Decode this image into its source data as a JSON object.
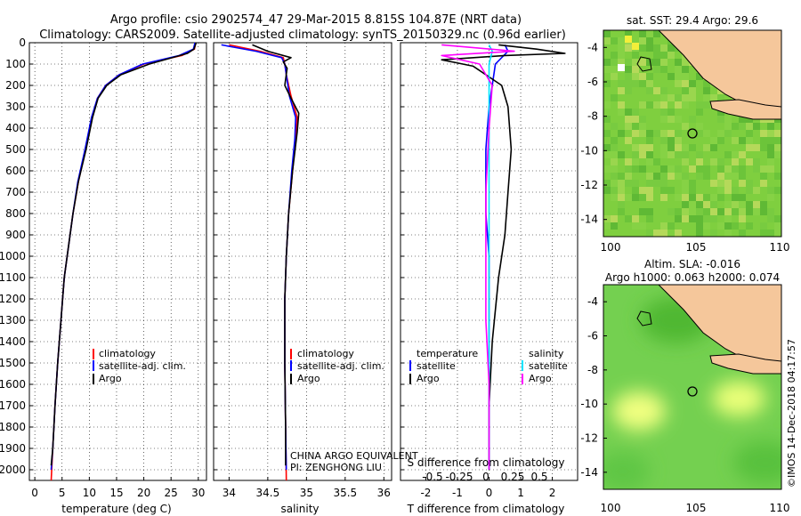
{
  "header": {
    "line1": "Argo profile: csio 2902574_47 29-Mar-2015 8.815S 104.87E (NRT data)",
    "line2": "Climatology: CARS2009. Satellite-adjusted climatology: synTS_20150329.nc (0.96d earlier)"
  },
  "colors": {
    "climatology": "#ff0000",
    "satellite": "#0000ff",
    "argo": "#000000",
    "sat_sal": "#00e5ff",
    "argo_sal": "#ff00ff"
  },
  "chart_data": [
    {
      "id": "temperature",
      "type": "line",
      "xlabel": "temperature (deg C)",
      "ylabel": "",
      "xlim": [
        -1,
        31.5
      ],
      "ylim": [
        2050,
        0
      ],
      "xticks": [
        0,
        5,
        10,
        15,
        20,
        25,
        30
      ],
      "yticks": [
        0,
        100,
        200,
        300,
        400,
        500,
        600,
        700,
        800,
        900,
        1000,
        1100,
        1200,
        1300,
        1400,
        1500,
        1600,
        1700,
        1800,
        1900,
        2000
      ],
      "legend": [
        "climatology",
        "satellite-adj. clim.",
        "Argo"
      ],
      "series": [
        {
          "name": "climatology",
          "color": "#ff0000",
          "points": [
            [
              29.5,
              0
            ],
            [
              29.3,
              30
            ],
            [
              27,
              60
            ],
            [
              20,
              100
            ],
            [
              15.5,
              150
            ],
            [
              13,
              200
            ],
            [
              11.5,
              260
            ],
            [
              10.5,
              350
            ],
            [
              9.3,
              500
            ],
            [
              8,
              650
            ],
            [
              7,
              800
            ],
            [
              6.2,
              950
            ],
            [
              5.4,
              1100
            ],
            [
              4.8,
              1300
            ],
            [
              4.2,
              1500
            ],
            [
              3.7,
              1700
            ],
            [
              3.3,
              1900
            ],
            [
              3,
              2050
            ]
          ]
        },
        {
          "name": "satellite-adj. clim.",
          "color": "#0000ff",
          "points": [
            [
              29.4,
              0
            ],
            [
              29.1,
              30
            ],
            [
              26.5,
              60
            ],
            [
              19.8,
              100
            ],
            [
              15.5,
              150
            ],
            [
              13,
              200
            ],
            [
              11.5,
              260
            ],
            [
              10.4,
              350
            ],
            [
              9.2,
              500
            ],
            [
              7.9,
              650
            ],
            [
              7,
              800
            ],
            [
              6.2,
              950
            ],
            [
              5.4,
              1100
            ],
            [
              4.8,
              1300
            ],
            [
              4.2,
              1500
            ],
            [
              3.7,
              1700
            ],
            [
              3.3,
              1900
            ],
            [
              3,
              2000
            ]
          ]
        },
        {
          "name": "Argo",
          "color": "#000000",
          "points": [
            [
              29.6,
              0
            ],
            [
              29.2,
              30
            ],
            [
              28,
              50
            ],
            [
              21,
              100
            ],
            [
              15.8,
              150
            ],
            [
              13.2,
              200
            ],
            [
              11.6,
              260
            ],
            [
              10.6,
              350
            ],
            [
              9.4,
              500
            ],
            [
              8,
              650
            ],
            [
              7,
              800
            ],
            [
              6.2,
              950
            ],
            [
              5.4,
              1100
            ],
            [
              4.8,
              1300
            ],
            [
              4.2,
              1500
            ],
            [
              3.7,
              1700
            ],
            [
              3.3,
              1900
            ],
            [
              3,
              1980
            ]
          ]
        }
      ]
    },
    {
      "id": "salinity",
      "type": "line",
      "xlabel": "salinity",
      "xlim": [
        33.8,
        36.1
      ],
      "ylim": [
        2050,
        0
      ],
      "xticks": [
        34,
        34.5,
        35,
        35.5,
        36
      ],
      "xtick_labels": [
        "34",
        "34.5",
        "35",
        "35.5",
        "36"
      ],
      "legend": [
        "climatology",
        "satellite-adj. clim.",
        "Argo"
      ],
      "annotations": [
        "CHINA ARGO EQUIVALENT",
        "PI: ZENGHONG LIU"
      ],
      "series": [
        {
          "name": "climatology",
          "color": "#ff0000",
          "points": [
            [
              34.0,
              10
            ],
            [
              34.4,
              40
            ],
            [
              34.7,
              70
            ],
            [
              34.72,
              100
            ],
            [
              34.74,
              150
            ],
            [
              34.8,
              250
            ],
            [
              34.88,
              350
            ],
            [
              34.86,
              450
            ],
            [
              34.82,
              600
            ],
            [
              34.77,
              800
            ],
            [
              34.74,
              1000
            ],
            [
              34.72,
              1200
            ],
            [
              34.72,
              1500
            ],
            [
              34.73,
              1800
            ],
            [
              34.74,
              2050
            ]
          ]
        },
        {
          "name": "satellite-adj. clim.",
          "color": "#0000ff",
          "points": [
            [
              33.9,
              10
            ],
            [
              34.35,
              40
            ],
            [
              34.68,
              70
            ],
            [
              34.72,
              100
            ],
            [
              34.74,
              150
            ],
            [
              34.78,
              250
            ],
            [
              34.86,
              350
            ],
            [
              34.85,
              450
            ],
            [
              34.81,
              600
            ],
            [
              34.77,
              800
            ],
            [
              34.74,
              1000
            ],
            [
              34.72,
              1200
            ],
            [
              34.72,
              1500
            ],
            [
              34.73,
              1800
            ],
            [
              34.74,
              2000
            ]
          ]
        },
        {
          "name": "Argo",
          "color": "#000000",
          "points": [
            [
              34.3,
              10
            ],
            [
              34.5,
              40
            ],
            [
              34.8,
              70
            ],
            [
              34.7,
              90
            ],
            [
              34.75,
              120
            ],
            [
              34.72,
              200
            ],
            [
              34.8,
              260
            ],
            [
              34.9,
              330
            ],
            [
              34.88,
              420
            ],
            [
              34.82,
              600
            ],
            [
              34.77,
              800
            ],
            [
              34.74,
              1000
            ],
            [
              34.72,
              1200
            ],
            [
              34.72,
              1500
            ],
            [
              34.73,
              1800
            ],
            [
              34.73,
              1980
            ]
          ]
        }
      ]
    },
    {
      "id": "difference",
      "type": "line",
      "xlabel": "T difference from climatology",
      "toplabel": "S difference from climatology",
      "xlim": [
        -2.8,
        2.8
      ],
      "ylim": [
        2050,
        0
      ],
      "xticks": [
        -2,
        -1,
        0,
        1,
        2
      ],
      "top_ticks": [
        -0.5,
        -0.25,
        0,
        0.25,
        0.5
      ],
      "top_tick_labels": [
        "-0.5",
        "-0.25",
        "0",
        "0.25",
        "0.5"
      ],
      "legend_left_title": "temperature",
      "legend_right_title": "salinity",
      "legend": [
        "satellite",
        "Argo"
      ],
      "series": [
        {
          "name": "T satellite",
          "color": "#0000ff",
          "points": [
            [
              0.5,
              10
            ],
            [
              0.6,
              40
            ],
            [
              0.2,
              100
            ],
            [
              0.1,
              200
            ],
            [
              0,
              300
            ],
            [
              -0.1,
              500
            ],
            [
              -0.1,
              800
            ],
            [
              0,
              1000
            ],
            [
              0,
              1500
            ],
            [
              0,
              2000
            ]
          ]
        },
        {
          "name": "T Argo",
          "color": "#000000",
          "points": [
            [
              0.3,
              10
            ],
            [
              1.5,
              30
            ],
            [
              2.4,
              50
            ],
            [
              0.5,
              60
            ],
            [
              -1.5,
              80
            ],
            [
              -0.5,
              110
            ],
            [
              0.4,
              200
            ],
            [
              0.6,
              300
            ],
            [
              0.7,
              500
            ],
            [
              0.6,
              700
            ],
            [
              0.5,
              900
            ],
            [
              0.3,
              1100
            ],
            [
              0.1,
              1400
            ],
            [
              0,
              1700
            ],
            [
              0,
              2000
            ]
          ]
        },
        {
          "name": "S satellite",
          "color": "#00e5ff",
          "points": [
            [
              0,
              10
            ],
            [
              0.1,
              40
            ],
            [
              0,
              100
            ],
            [
              0,
              300
            ],
            [
              0,
              600
            ],
            [
              0,
              1000
            ],
            [
              0,
              1500
            ],
            [
              0,
              2000
            ]
          ]
        },
        {
          "name": "S Argo",
          "color": "#ff00ff",
          "points": [
            [
              -1.5,
              10
            ],
            [
              0.8,
              40
            ],
            [
              -1.5,
              60
            ],
            [
              -0.3,
              100
            ],
            [
              0.1,
              200
            ],
            [
              0,
              400
            ],
            [
              -0.1,
              700
            ],
            [
              -0.1,
              1000
            ],
            [
              -0.1,
              1300
            ],
            [
              0,
              1600
            ],
            [
              0,
              2000
            ]
          ]
        }
      ]
    },
    {
      "id": "sst_map",
      "type": "heatmap",
      "title": "sat. SST: 29.4 Argo: 29.6",
      "xticks": [
        "100",
        "105",
        "110"
      ],
      "yticks": [
        "-4",
        "-6",
        "-8",
        "-10",
        "-12",
        "-14"
      ],
      "float_location": [
        104.87,
        -8.815
      ]
    },
    {
      "id": "sla_map",
      "type": "heatmap",
      "title1": "Altim. SLA: -0.016",
      "title2": "Argo h1000: 0.063 h2000: 0.074",
      "xticks": [
        "100",
        "105",
        "110"
      ],
      "yticks": [
        "-4",
        "-6",
        "-8",
        "-10",
        "-12",
        "-14"
      ],
      "float_location": [
        104.87,
        -8.815
      ]
    }
  ],
  "footer": {
    "stamp": "©IMOS 14-Dec-2018 04:17:57"
  }
}
